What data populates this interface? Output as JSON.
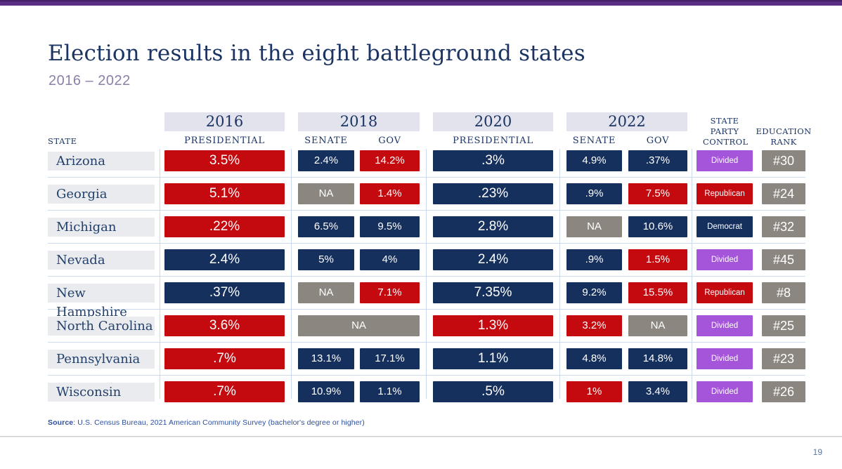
{
  "page": {
    "title": "Election results in the eight battleground states",
    "subtitle": "2016 – 2022",
    "source_label": "Source",
    "source_text": ": U.S. Census Bureau, 2021 American Community Survey (bachelor's degree or higher)",
    "page_number": "19"
  },
  "colors": {
    "republican_red": "#c4090f",
    "democrat_navy": "#16305e",
    "na_gray": "#8b8780",
    "divided_purple": "#a455d9",
    "year_band": "#e3e3ee",
    "state_cell": "#e9ebef",
    "grid_line": "#ccdbee",
    "accent_bar": "#5c2d84"
  },
  "table": {
    "state_header": "STATE",
    "year_groups": [
      {
        "year": "2016",
        "sub": [
          "PRESIDENTIAL"
        ]
      },
      {
        "year": "2018",
        "sub": [
          "SENATE",
          "GOV"
        ]
      },
      {
        "year": "2020",
        "sub": [
          "PRESIDENTIAL"
        ]
      },
      {
        "year": "2022",
        "sub": [
          "SENATE",
          "GOV"
        ]
      }
    ],
    "headers": {
      "p2016": "PRESIDENTIAL",
      "s2018": "SENATE",
      "g2018": "GOV",
      "p2020": "PRESIDENTIAL",
      "s2022": "SENATE",
      "g2022": "GOV",
      "control": "STATE PARTY CONTROL",
      "rank": "EDUCATION RANK"
    },
    "rows": [
      {
        "state": "Arizona",
        "p2016": {
          "value": "3.5%",
          "party": "R"
        },
        "s2018": {
          "value": "2.4%",
          "party": "D"
        },
        "g2018": {
          "value": "14.2%",
          "party": "R"
        },
        "p2020": {
          "value": ".3%",
          "party": "D"
        },
        "s2022": {
          "value": "4.9%",
          "party": "D"
        },
        "g2022": {
          "value": ".37%",
          "party": "D"
        },
        "control": {
          "value": "Divided",
          "party": "X"
        },
        "rank": "#30"
      },
      {
        "state": "Georgia",
        "p2016": {
          "value": "5.1%",
          "party": "R"
        },
        "s2018": {
          "value": "NA",
          "party": "NA"
        },
        "g2018": {
          "value": "1.4%",
          "party": "R"
        },
        "p2020": {
          "value": ".23%",
          "party": "D"
        },
        "s2022": {
          "value": ".9%",
          "party": "D"
        },
        "g2022": {
          "value": "7.5%",
          "party": "R"
        },
        "control": {
          "value": "Republican",
          "party": "R"
        },
        "rank": "#24"
      },
      {
        "state": "Michigan",
        "p2016": {
          "value": ".22%",
          "party": "R"
        },
        "s2018": {
          "value": "6.5%",
          "party": "D"
        },
        "g2018": {
          "value": "9.5%",
          "party": "D"
        },
        "p2020": {
          "value": "2.8%",
          "party": "D"
        },
        "s2022": {
          "value": "NA",
          "party": "NA"
        },
        "g2022": {
          "value": "10.6%",
          "party": "D"
        },
        "control": {
          "value": "Democrat",
          "party": "D"
        },
        "rank": "#32"
      },
      {
        "state": "Nevada",
        "p2016": {
          "value": "2.4%",
          "party": "D"
        },
        "s2018": {
          "value": "5%",
          "party": "D"
        },
        "g2018": {
          "value": "4%",
          "party": "D"
        },
        "p2020": {
          "value": "2.4%",
          "party": "D"
        },
        "s2022": {
          "value": ".9%",
          "party": "D"
        },
        "g2022": {
          "value": "1.5%",
          "party": "R"
        },
        "control": {
          "value": "Divided",
          "party": "X"
        },
        "rank": "#45"
      },
      {
        "state": "New Hampshire",
        "p2016": {
          "value": ".37%",
          "party": "D"
        },
        "s2018": {
          "value": "NA",
          "party": "NA"
        },
        "g2018": {
          "value": "7.1%",
          "party": "R"
        },
        "p2020": {
          "value": "7.35%",
          "party": "D"
        },
        "s2022": {
          "value": "9.2%",
          "party": "D"
        },
        "g2022": {
          "value": "15.5%",
          "party": "R"
        },
        "control": {
          "value": "Republican",
          "party": "R"
        },
        "rank": "#8"
      },
      {
        "state": "North Carolina",
        "p2016": {
          "value": "3.6%",
          "party": "R"
        },
        "s2018": {
          "value": "NA",
          "party": "NA",
          "span": 2
        },
        "g2018": null,
        "p2020": {
          "value": "1.3%",
          "party": "R"
        },
        "s2022": {
          "value": "3.2%",
          "party": "R"
        },
        "g2022": {
          "value": "NA",
          "party": "NA"
        },
        "control": {
          "value": "Divided",
          "party": "X"
        },
        "rank": "#25"
      },
      {
        "state": "Pennsylvania",
        "p2016": {
          "value": ".7%",
          "party": "R"
        },
        "s2018": {
          "value": "13.1%",
          "party": "D"
        },
        "g2018": {
          "value": "17.1%",
          "party": "D"
        },
        "p2020": {
          "value": "1.1%",
          "party": "D"
        },
        "s2022": {
          "value": "4.8%",
          "party": "D"
        },
        "g2022": {
          "value": "14.8%",
          "party": "D"
        },
        "control": {
          "value": "Divided",
          "party": "X"
        },
        "rank": "#23"
      },
      {
        "state": "Wisconsin",
        "p2016": {
          "value": ".7%",
          "party": "R"
        },
        "s2018": {
          "value": "10.9%",
          "party": "D"
        },
        "g2018": {
          "value": "1.1%",
          "party": "D"
        },
        "p2020": {
          "value": ".5%",
          "party": "D"
        },
        "s2022": {
          "value": "1%",
          "party": "R"
        },
        "g2022": {
          "value": "3.4%",
          "party": "D"
        },
        "control": {
          "value": "Divided",
          "party": "X"
        },
        "rank": "#26"
      }
    ]
  }
}
